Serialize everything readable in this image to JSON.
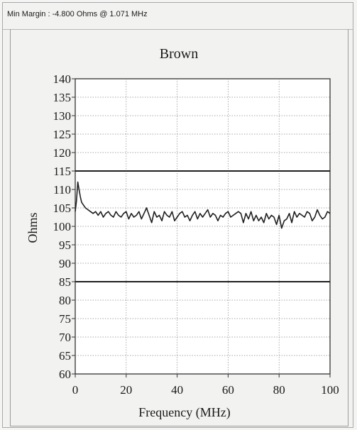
{
  "header": {
    "min_margin_text": "Min Margin : -4.800 Ohms @ 1.071 MHz"
  },
  "chart_data": {
    "type": "line",
    "title": "Brown",
    "xlabel": "Frequency (MHz)",
    "ylabel": "Ohms",
    "xlim": [
      0,
      100
    ],
    "ylim": [
      60,
      140
    ],
    "x_ticks": [
      0,
      20,
      40,
      60,
      80,
      100
    ],
    "y_ticks": [
      60,
      65,
      70,
      75,
      80,
      85,
      90,
      95,
      100,
      105,
      110,
      115,
      120,
      125,
      130,
      135,
      140
    ],
    "grid": true,
    "limits": [
      {
        "y": 115
      },
      {
        "y": 85
      }
    ],
    "series": [
      {
        "x": [
          0,
          0.5,
          1.0,
          1.5,
          2.0,
          2.5,
          3,
          3.5,
          4,
          5,
          6,
          7,
          8,
          9,
          10,
          11,
          12,
          13,
          14,
          15,
          16,
          17,
          18,
          19,
          20,
          21,
          22,
          23,
          24,
          25,
          26,
          27,
          28,
          29,
          30,
          31,
          32,
          33,
          34,
          35,
          36,
          37,
          38,
          39,
          40,
          41,
          42,
          43,
          44,
          45,
          46,
          47,
          48,
          49,
          50,
          51,
          52,
          53,
          54,
          55,
          56,
          57,
          58,
          59,
          60,
          61,
          62,
          63,
          64,
          65,
          66,
          67,
          68,
          69,
          70,
          71,
          72,
          73,
          74,
          75,
          76,
          77,
          78,
          79,
          80,
          81,
          82,
          83,
          84,
          85,
          86,
          87,
          88,
          89,
          90,
          91,
          92,
          93,
          94,
          95,
          96,
          97,
          98,
          99,
          100
        ],
        "values": [
          104,
          107,
          112,
          110,
          108,
          106.5,
          106,
          105.5,
          105,
          104.5,
          104,
          103.5,
          104,
          103,
          104,
          102.5,
          103.5,
          104,
          103,
          102.5,
          104,
          103,
          102.5,
          103.5,
          104,
          102,
          103.5,
          102.5,
          103,
          104,
          102,
          103.5,
          105,
          103,
          101,
          104,
          102.5,
          103,
          101.5,
          104,
          103,
          102.5,
          104,
          101.5,
          102.5,
          103.5,
          104,
          102.5,
          103,
          101.5,
          103,
          104,
          102,
          103.5,
          102.5,
          103.5,
          104.5,
          102.5,
          103.5,
          103,
          101.5,
          103,
          102.5,
          103.5,
          104,
          102.5,
          103,
          103.5,
          104,
          103.5,
          101,
          103.5,
          102,
          104,
          101.5,
          103,
          101.5,
          102.5,
          101,
          103.5,
          102,
          103,
          102.5,
          100.5,
          103,
          99.5,
          101.5,
          102,
          103.5,
          101,
          104,
          102.5,
          103.5,
          103,
          102.5,
          104,
          103.5,
          101.5,
          102.5,
          104.5,
          103,
          102,
          102.5,
          104,
          103.5
        ]
      }
    ]
  }
}
